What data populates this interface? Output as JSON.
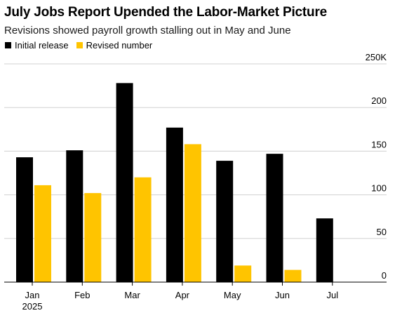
{
  "title": "July Jobs Report Upended the Labor-Market Picture",
  "subtitle": "Revisions showed payroll growth stalling out in May and June",
  "legend": [
    {
      "label": "Initial release",
      "color": "#000000"
    },
    {
      "label": "Revised number",
      "color": "#FFC400"
    }
  ],
  "chart_data": {
    "type": "bar",
    "categories": [
      "Jan",
      "Feb",
      "Mar",
      "Apr",
      "May",
      "Jun",
      "Jul"
    ],
    "category_sublabels": [
      "2025",
      "",
      "",
      "",
      "",
      "",
      ""
    ],
    "series": [
      {
        "name": "Initial release",
        "color": "#000000",
        "values": [
          143,
          151,
          228,
          177,
          139,
          147,
          73
        ]
      },
      {
        "name": "Revised number",
        "color": "#FFC400",
        "values": [
          111,
          102,
          120,
          158,
          19,
          14,
          null
        ]
      }
    ],
    "ylim": [
      0,
      250
    ],
    "yticks": [
      0,
      50,
      100,
      150,
      200,
      250
    ],
    "ytick_labels": [
      "0",
      "50",
      "100",
      "150",
      "200",
      "250K"
    ],
    "y_axis_side": "right",
    "grid": true,
    "legend_position": "top-left",
    "title": "July Jobs Report Upended the Labor-Market Picture",
    "xlabel": "",
    "ylabel": ""
  }
}
